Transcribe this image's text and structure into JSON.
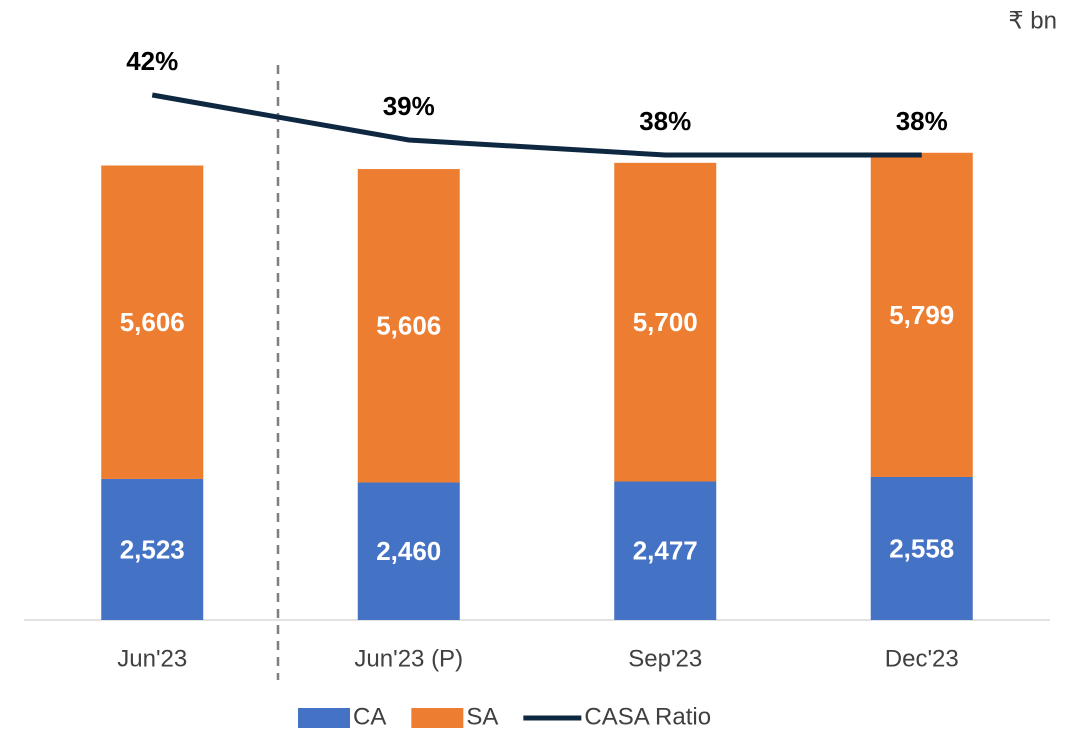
{
  "chart_data": {
    "type": "bar",
    "subtitle": "₹ bn",
    "categories": [
      "Jun'23",
      "Jun'23 (P)",
      "Sep'23",
      "Dec'23"
    ],
    "stacked": true,
    "series": [
      {
        "name": "CA",
        "type": "bar",
        "color": "#4472c4",
        "values": [
          2523,
          2460,
          2477,
          2558
        ],
        "value_labels": [
          "2,523",
          "2,460",
          "2,477",
          "2,558"
        ]
      },
      {
        "name": "SA",
        "type": "bar",
        "color": "#ed7d31",
        "values": [
          5606,
          5606,
          5700,
          5799
        ],
        "value_labels": [
          "5,606",
          "5,606",
          "5,700",
          "5,799"
        ]
      },
      {
        "name": "CASA Ratio",
        "type": "line",
        "axis": "y2",
        "color": "#0e2841",
        "values": [
          42,
          39,
          38,
          38
        ],
        "value_labels": [
          "42%",
          "39%",
          "38%",
          "38%"
        ]
      }
    ],
    "ylim": [
      0,
      11000
    ],
    "y2lim": [
      7,
      48
    ],
    "legend": "bottom"
  }
}
